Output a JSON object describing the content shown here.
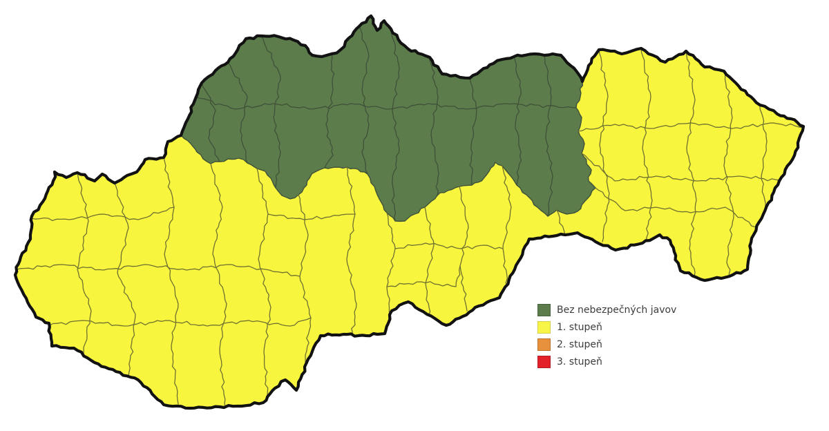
{
  "legend": {
    "items": [
      {
        "label": "Bez nebezpečných javov",
        "color": "#5C7C4C",
        "border": "#47613C"
      },
      {
        "label": "1. stupeň",
        "color": "#F8F549",
        "border": "#D6CE48"
      },
      {
        "label": "2. stupeň",
        "color": "#E8913C",
        "border": "#C07230"
      },
      {
        "label": "3. stupeň",
        "color": "#E3212A",
        "border": "#AF1B21"
      }
    ]
  },
  "map_colors": {
    "level1_fill": "#F8F53E",
    "no_warning_fill": "#5C7C4C",
    "outline": "#121212",
    "district_line_level1": "#6E7030",
    "district_line_no_warning": "#3F5138",
    "background": "#FFFFFF"
  }
}
